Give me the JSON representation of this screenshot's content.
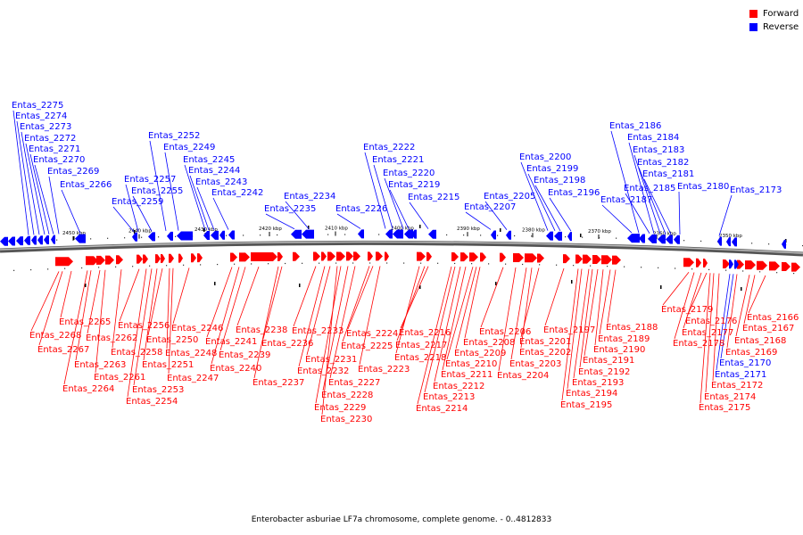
{
  "legend": {
    "forward": {
      "label": "Forward",
      "color": "#ff0000"
    },
    "reverse": {
      "label": "Reverse",
      "color": "#0000ff"
    }
  },
  "caption": "Enterobacter asburiae LF7a chromosome, complete genome. - 0..4812833",
  "scale_unit": "kbp",
  "scale_ticks": [
    2450,
    2440,
    2430,
    2420,
    2410,
    2400,
    2390,
    2380,
    2370,
    2360,
    2350
  ],
  "reverse_genes": [
    "Entas_2275",
    "Entas_2274",
    "Entas_2273",
    "Entas_2272",
    "Entas_2271",
    "Entas_2270",
    "Entas_2269",
    "Entas_2266",
    "Entas_2259",
    "Entas_2257",
    "Entas_2255",
    "Entas_2252",
    "Entas_2249",
    "Entas_2245",
    "Entas_2244",
    "Entas_2243",
    "Entas_2242",
    "Entas_2235",
    "Entas_2234",
    "Entas_2226",
    "Entas_2222",
    "Entas_2221",
    "Entas_2220",
    "Entas_2219",
    "Entas_2215",
    "Entas_2207",
    "Entas_2205",
    "Entas_2200",
    "Entas_2199",
    "Entas_2198",
    "Entas_2196",
    "Entas_2187",
    "Entas_2186",
    "Entas_2185",
    "Entas_2184",
    "Entas_2183",
    "Entas_2182",
    "Entas_2181",
    "Entas_2180",
    "Entas_2173"
  ],
  "forward_genes": [
    "Entas_2268",
    "Entas_2267",
    "Entas_2265",
    "Entas_2264",
    "Entas_2263",
    "Entas_2262",
    "Entas_2261",
    "Entas_2258",
    "Entas_2256",
    "Entas_2254",
    "Entas_2253",
    "Entas_2251",
    "Entas_2250",
    "Entas_2248",
    "Entas_2247",
    "Entas_2246",
    "Entas_2241",
    "Entas_2240",
    "Entas_2239",
    "Entas_2238",
    "Entas_2237",
    "Entas_2236",
    "Entas_2233",
    "Entas_2232",
    "Entas_2231",
    "Entas_2230",
    "Entas_2229",
    "Entas_2228",
    "Entas_2227",
    "Entas_2225",
    "Entas_2224",
    "Entas_2223",
    "Entas_2218",
    "Entas_2217",
    "Entas_2216",
    "Entas_2214",
    "Entas_2213",
    "Entas_2212",
    "Entas_2211",
    "Entas_2210",
    "Entas_2209",
    "Entas_2208",
    "Entas_2206",
    "Entas_2204",
    "Entas_2203",
    "Entas_2202",
    "Entas_2201",
    "Entas_2197",
    "Entas_2195",
    "Entas_2194",
    "Entas_2193",
    "Entas_2192",
    "Entas_2191",
    "Entas_2190",
    "Entas_2189",
    "Entas_2188",
    "Entas_2179",
    "Entas_2178",
    "Entas_2177",
    "Entas_2176",
    "Entas_2175",
    "Entas_2174",
    "Entas_2172",
    "Entas_2169",
    "Entas_2168",
    "Entas_2167",
    "Entas_2166"
  ],
  "reverse_in_lower_labels": [
    "Entas_2171",
    "Entas_2170"
  ]
}
